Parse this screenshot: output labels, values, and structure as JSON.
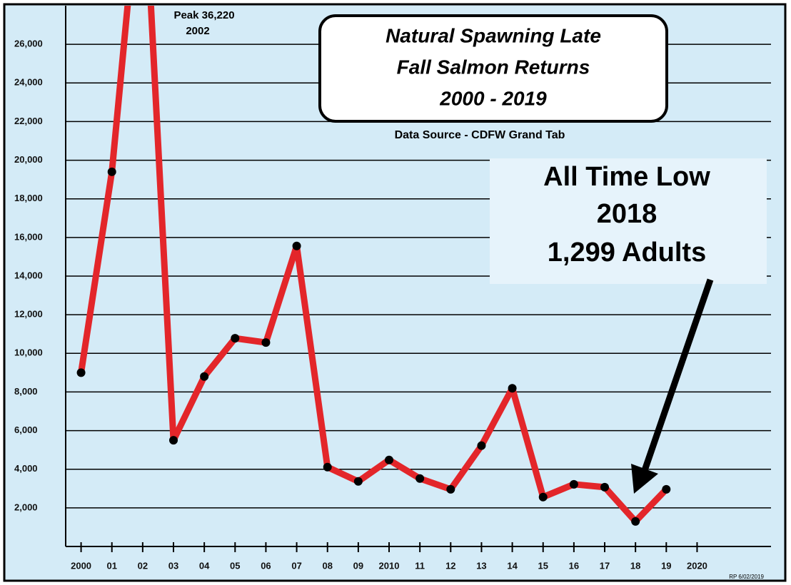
{
  "chart_data": {
    "type": "line",
    "title": [
      "Natural Spawning Late",
      "Fall Salmon Returns",
      "2000 - 2019"
    ],
    "subtitle": "Data Source - CDFW Grand Tab",
    "annotations": {
      "peak": [
        "Peak 36,220",
        "2002"
      ],
      "low": [
        "All Time Low",
        "2018",
        "1,299 Adults"
      ],
      "credit": "RP 6/02/2019"
    },
    "x": [
      2000,
      2001,
      2002,
      2003,
      2004,
      2005,
      2006,
      2007,
      2008,
      2009,
      2010,
      2011,
      2012,
      2013,
      2014,
      2015,
      2016,
      2017,
      2018,
      2019
    ],
    "series": [
      {
        "name": "Returns",
        "color": "#e3262a",
        "values": [
          9000,
          19400,
          36220,
          5500,
          8800,
          10780,
          10560,
          15560,
          4110,
          3370,
          4480,
          3520,
          2960,
          5220,
          8190,
          2560,
          3220,
          3070,
          1299,
          2960
        ]
      }
    ],
    "xlim": [
      1999.5,
      2022.4
    ],
    "xticks": [
      {
        "value": 2000,
        "label": "2000"
      },
      {
        "value": 2001,
        "label": "01"
      },
      {
        "value": 2002,
        "label": "02"
      },
      {
        "value": 2003,
        "label": "03"
      },
      {
        "value": 2004,
        "label": "04"
      },
      {
        "value": 2005,
        "label": "05"
      },
      {
        "value": 2006,
        "label": "06"
      },
      {
        "value": 2007,
        "label": "07"
      },
      {
        "value": 2008,
        "label": "08"
      },
      {
        "value": 2009,
        "label": "09"
      },
      {
        "value": 2010,
        "label": "2010"
      },
      {
        "value": 2011,
        "label": "11"
      },
      {
        "value": 2012,
        "label": "12"
      },
      {
        "value": 2013,
        "label": "13"
      },
      {
        "value": 2014,
        "label": "14"
      },
      {
        "value": 2015,
        "label": "15"
      },
      {
        "value": 2016,
        "label": "16"
      },
      {
        "value": 2017,
        "label": "17"
      },
      {
        "value": 2018,
        "label": "18"
      },
      {
        "value": 2019,
        "label": "19"
      },
      {
        "value": 2020,
        "label": "2020"
      }
    ],
    "ylim": [
      0,
      28000
    ],
    "yticks": [
      {
        "value": 2000,
        "label": "2,000"
      },
      {
        "value": 4000,
        "label": "4,000"
      },
      {
        "value": 6000,
        "label": "6,000"
      },
      {
        "value": 8000,
        "label": "8,000"
      },
      {
        "value": 10000,
        "label": "10,000"
      },
      {
        "value": 12000,
        "label": "12,000"
      },
      {
        "value": 14000,
        "label": "14,000"
      },
      {
        "value": 16000,
        "label": "16,000"
      },
      {
        "value": 18000,
        "label": "18,000"
      },
      {
        "value": 20000,
        "label": "20,000"
      },
      {
        "value": 22000,
        "label": "22,000"
      },
      {
        "value": 24000,
        "label": "24,000"
      },
      {
        "value": 26000,
        "label": "26,000"
      }
    ],
    "grid": true
  }
}
